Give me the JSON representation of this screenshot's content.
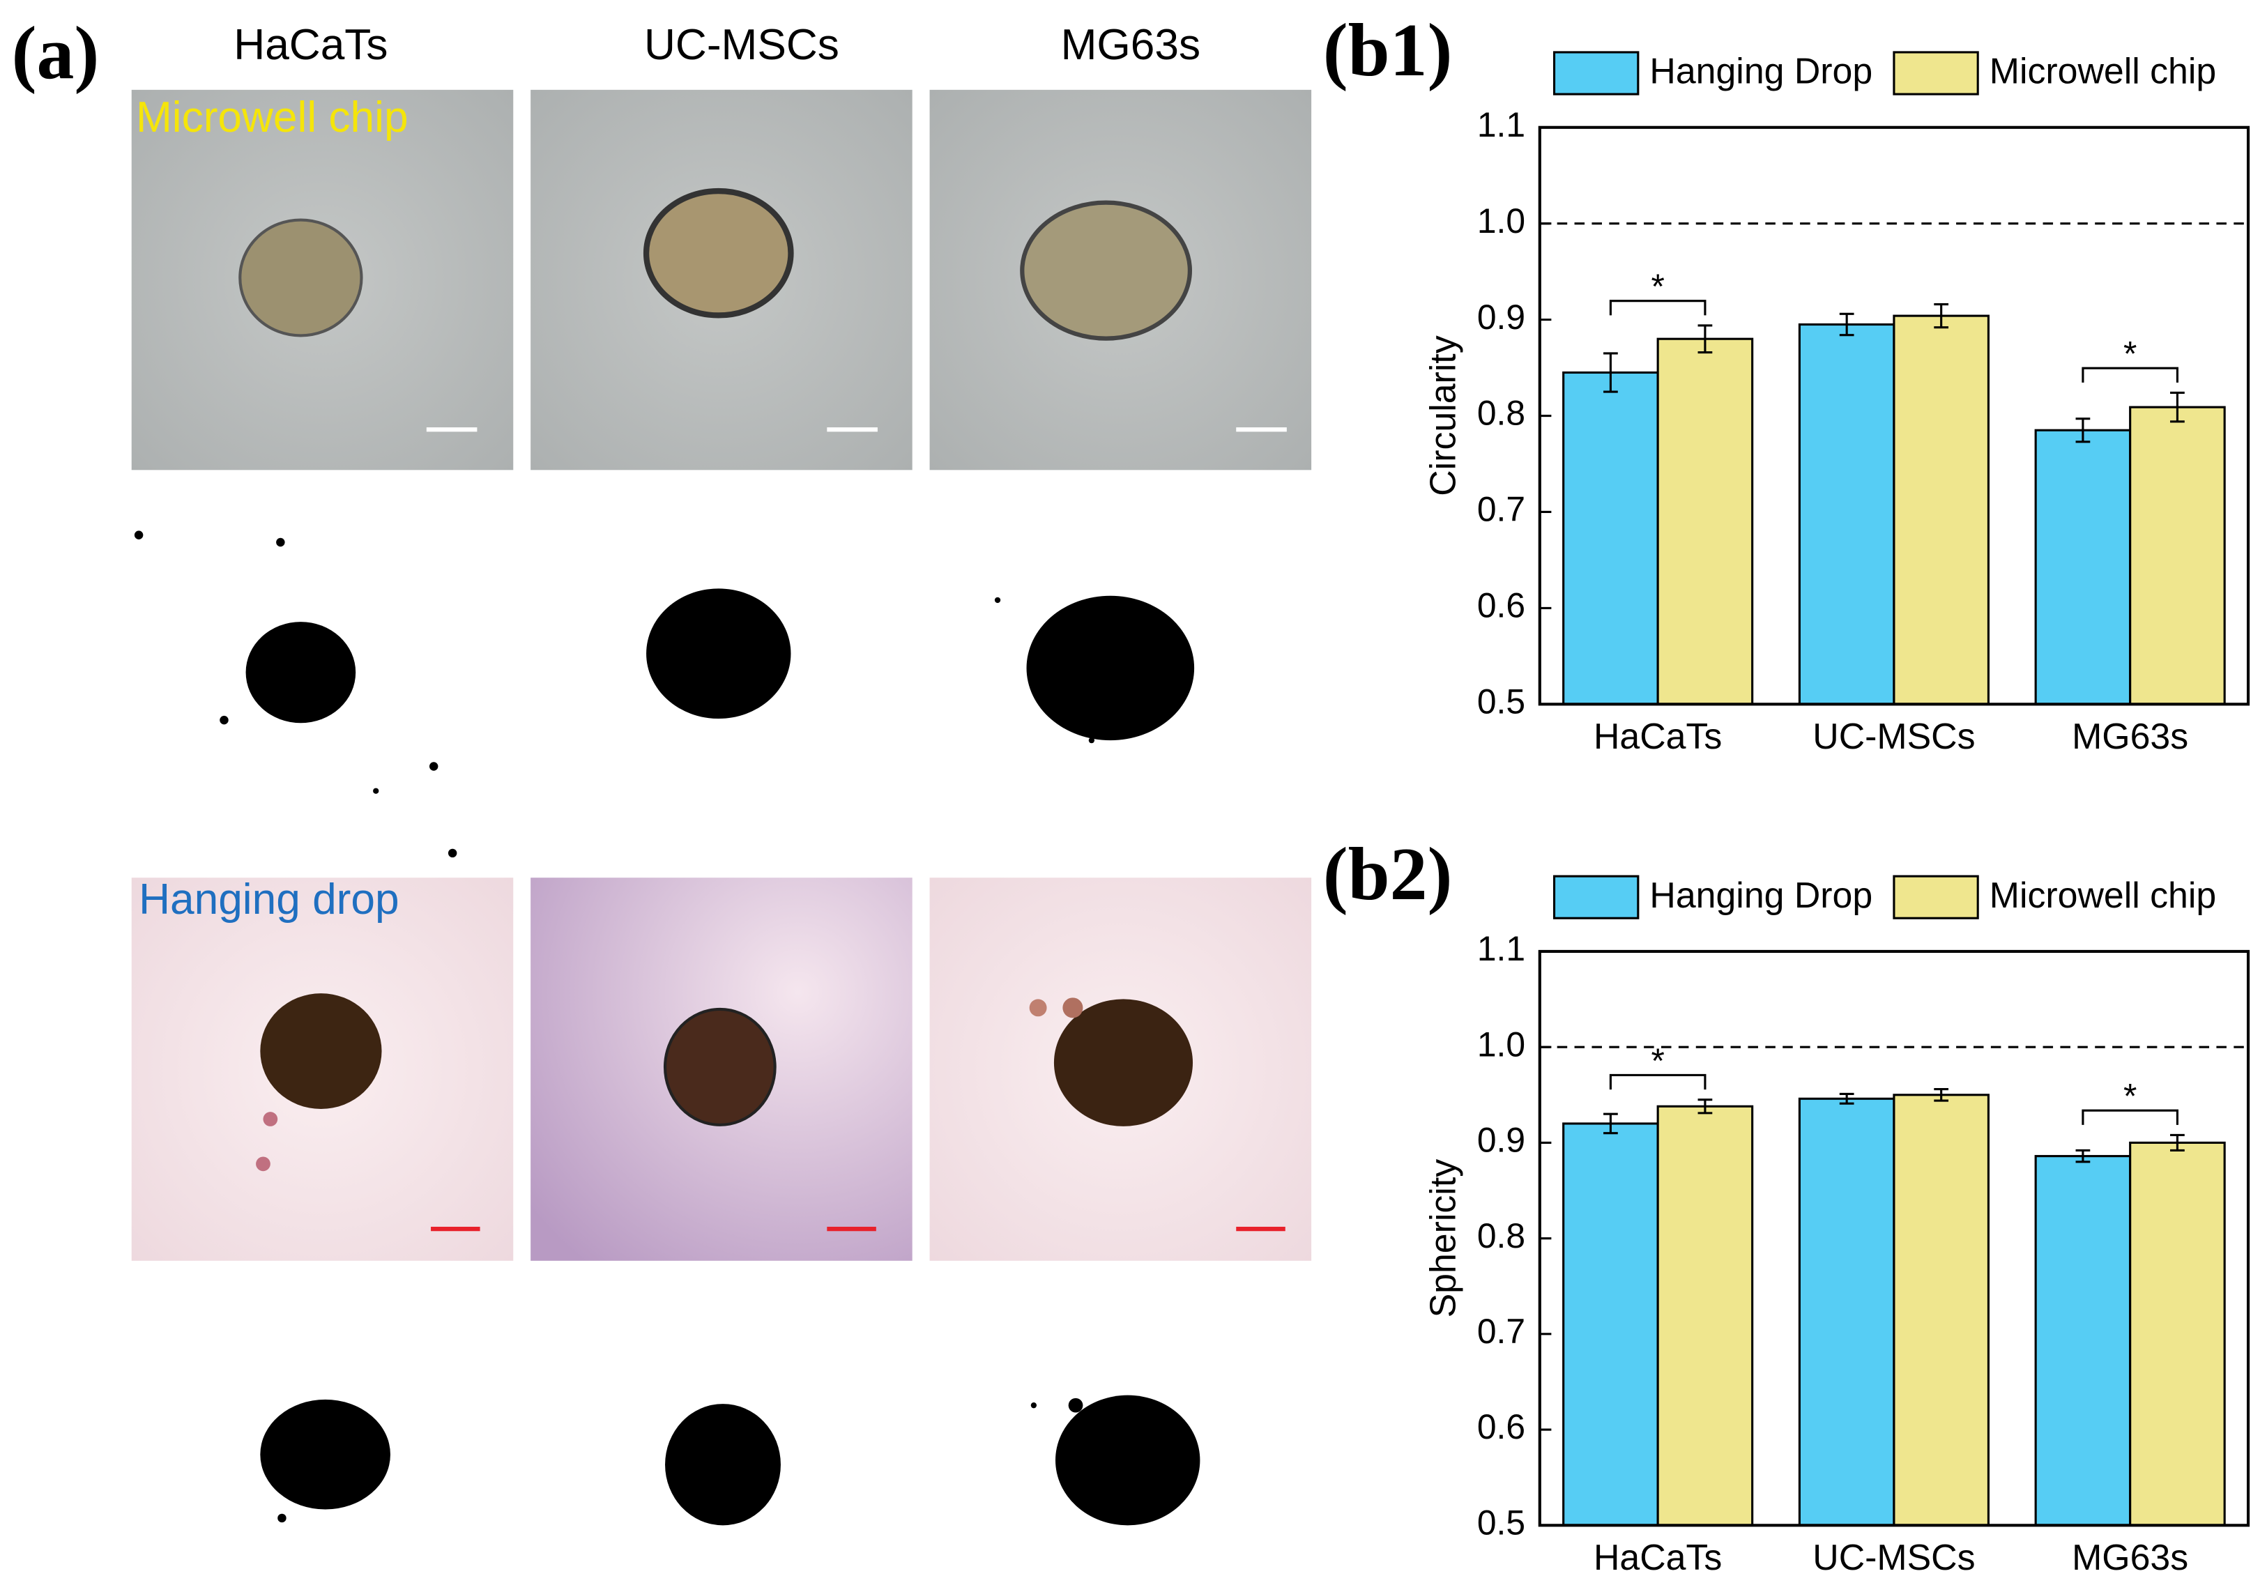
{
  "panel_a": {
    "label": "(a)",
    "column_labels": [
      "HaCaTs",
      "UC-MSCs",
      "MG63s"
    ],
    "image_labels": [
      "Microwell chip",
      "Hanging drop"
    ]
  },
  "chart_data": [
    {
      "type": "bar",
      "panel_label": "(b1)",
      "y_label": "Circularity",
      "categories": [
        "HaCaTs",
        "UC-MSCs",
        "MG63s"
      ],
      "series": [
        {
          "name": "Hanging Drop",
          "color": "#56cdf4",
          "values": [
            0.845,
            0.895,
            0.785
          ],
          "errors": [
            0.02,
            0.011,
            0.012
          ]
        },
        {
          "name": "Microwell chip",
          "color": "#efe68e",
          "values": [
            0.88,
            0.904,
            0.809
          ],
          "errors": [
            0.014,
            0.012,
            0.015
          ]
        }
      ],
      "significance_labels": [
        "*",
        null,
        "*"
      ],
      "hline": 1,
      "ylim": [
        0.5,
        1.1
      ],
      "yticks": [
        0.5,
        0.6,
        0.7,
        0.8,
        0.9,
        {
          "value": 1,
          "label": "1.0"
        },
        1.1
      ]
    },
    {
      "type": "bar",
      "panel_label": "(b2)",
      "y_label": "Sphericity",
      "categories": [
        "HaCaTs",
        "UC-MSCs",
        "MG63s"
      ],
      "series": [
        {
          "name": "Hanging Drop",
          "color": "#56cdf4",
          "values": [
            0.92,
            0.946,
            0.886
          ],
          "errors": [
            0.01,
            0.005,
            0.006
          ]
        },
        {
          "name": "Microwell chip",
          "color": "#efe68e",
          "values": [
            0.938,
            0.95,
            0.9
          ],
          "errors": [
            0.007,
            0.006,
            0.008
          ]
        }
      ],
      "significance_labels": [
        "*",
        null,
        "*"
      ],
      "hline": 1,
      "ylim": [
        0.5,
        1.1
      ],
      "yticks": [
        0.5,
        0.6,
        0.7,
        0.8,
        0.9,
        {
          "value": 1,
          "label": "1.0"
        },
        1.1
      ]
    }
  ]
}
